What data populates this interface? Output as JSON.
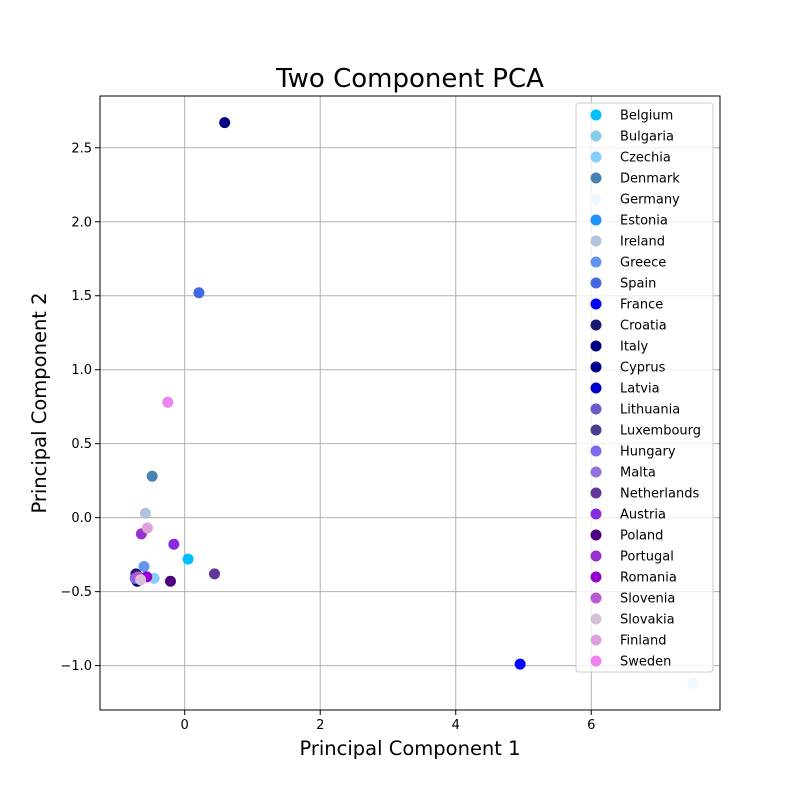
{
  "chart_data": {
    "type": "scatter",
    "title": "Two Component PCA",
    "xlabel": "Principal Component 1",
    "ylabel": "Principal Component 2",
    "xlim": [
      -1.25,
      7.9
    ],
    "ylim": [
      -1.3,
      2.85
    ],
    "xticks": [
      0,
      2,
      4,
      6
    ],
    "yticks": [
      -1.0,
      -0.5,
      0.0,
      0.5,
      1.0,
      1.5,
      2.0,
      2.5
    ],
    "xtick_labels": [
      "0",
      "2",
      "4",
      "6"
    ],
    "ytick_labels": [
      "−1.0",
      "−0.5",
      "0.0",
      "0.5",
      "1.0",
      "1.5",
      "2.0",
      "2.5"
    ],
    "grid": true,
    "legend_position": "top-right",
    "series": [
      {
        "name": "Belgium",
        "color": "#00bfff",
        "x": 0.05,
        "y": -0.28
      },
      {
        "name": "Bulgaria",
        "color": "#87ceeb",
        "x": -0.72,
        "y": -0.42
      },
      {
        "name": "Czechia",
        "color": "#87cefa",
        "x": -0.45,
        "y": -0.41
      },
      {
        "name": "Denmark",
        "color": "#4682b4",
        "x": -0.48,
        "y": 0.28
      },
      {
        "name": "Germany",
        "color": "#f0f8ff",
        "x": 7.5,
        "y": -1.12
      },
      {
        "name": "Estonia",
        "color": "#1e90ff",
        "x": -0.7,
        "y": -0.4
      },
      {
        "name": "Ireland",
        "color": "#b0c4de",
        "x": -0.58,
        "y": 0.03
      },
      {
        "name": "Greece",
        "color": "#6495ed",
        "x": -0.6,
        "y": -0.33
      },
      {
        "name": "Spain",
        "color": "#4169e1",
        "x": 0.21,
        "y": 1.52
      },
      {
        "name": "France",
        "color": "#0000ff",
        "x": 4.95,
        "y": -0.99
      },
      {
        "name": "Croatia",
        "color": "#191970",
        "x": -0.72,
        "y": -0.38
      },
      {
        "name": "Italy",
        "color": "#000080",
        "x": 0.59,
        "y": 2.67
      },
      {
        "name": "Cyprus",
        "color": "#00008b",
        "x": -0.7,
        "y": -0.43
      },
      {
        "name": "Latvia",
        "color": "#0000cd",
        "x": -0.66,
        "y": -0.42
      },
      {
        "name": "Lithuania",
        "color": "#6a5acd",
        "x": -0.7,
        "y": -0.41
      },
      {
        "name": "Luxembourg",
        "color": "#483d8b",
        "x": -0.68,
        "y": -0.4
      },
      {
        "name": "Hungary",
        "color": "#7b68ee",
        "x": -0.73,
        "y": -0.41
      },
      {
        "name": "Malta",
        "color": "#9370db",
        "x": -0.67,
        "y": -0.41
      },
      {
        "name": "Netherlands",
        "color": "#663399",
        "x": 0.44,
        "y": -0.38
      },
      {
        "name": "Austria",
        "color": "#8a2be2",
        "x": -0.16,
        "y": -0.18
      },
      {
        "name": "Poland",
        "color": "#4b0082",
        "x": -0.21,
        "y": -0.43
      },
      {
        "name": "Portugal",
        "color": "#9932cc",
        "x": -0.64,
        "y": -0.11
      },
      {
        "name": "Romania",
        "color": "#9400d3",
        "x": -0.56,
        "y": -0.4
      },
      {
        "name": "Slovenia",
        "color": "#ba55d3",
        "x": -0.69,
        "y": -0.4
      },
      {
        "name": "Slovakia",
        "color": "#d8bfd8",
        "x": -0.65,
        "y": -0.42
      },
      {
        "name": "Finland",
        "color": "#dda0dd",
        "x": -0.55,
        "y": -0.07
      },
      {
        "name": "Sweden",
        "color": "#ee82ee",
        "x": -0.25,
        "y": 0.78
      }
    ]
  }
}
